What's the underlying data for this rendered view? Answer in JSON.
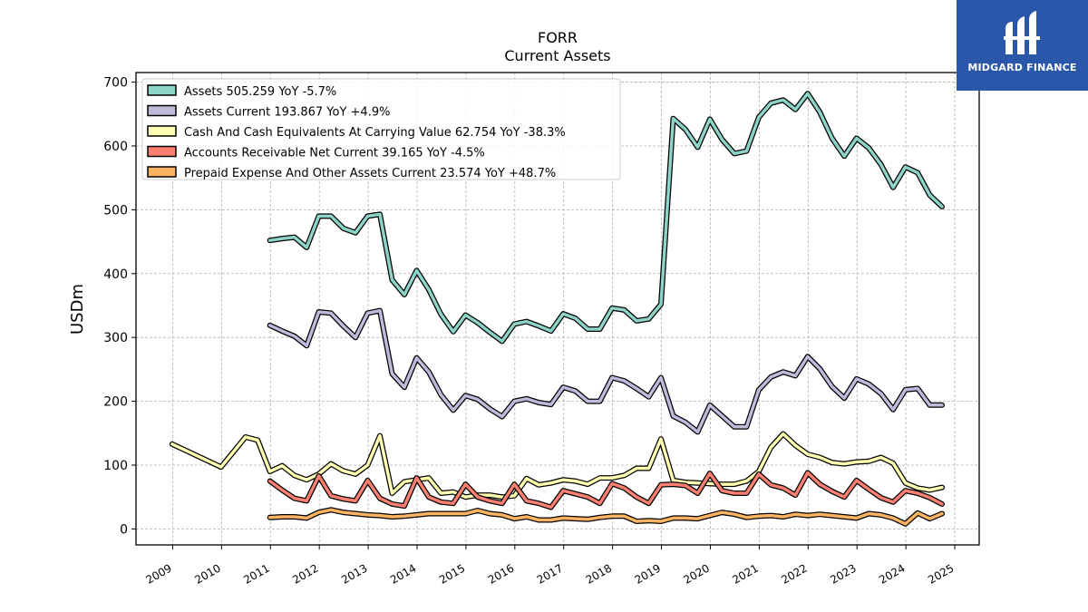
{
  "brand": {
    "name": "MIDGARD FINANCE",
    "bg_color": "#2a57a9"
  },
  "chart_data": {
    "type": "line",
    "title": "FORR",
    "subtitle": "Current  Assets",
    "xlabel": "",
    "ylabel": "USDm",
    "xlim": [
      2008.25,
      2025.5
    ],
    "ylim": [
      -25,
      715
    ],
    "yticks": [
      0,
      100,
      200,
      300,
      400,
      500,
      600,
      700
    ],
    "xticks": [
      "2009",
      "2010",
      "2011",
      "2012",
      "2013",
      "2014",
      "2015",
      "2016",
      "2017",
      "2018",
      "2019",
      "2020",
      "2021",
      "2022",
      "2023",
      "2024",
      "2025"
    ],
    "grid": true,
    "legend_position": "top-left",
    "series": [
      {
        "name": "Assets",
        "legend_label": "Assets  505.259 YoY -5.7%",
        "color": "#8dd3c7",
        "x": [
          2010.99,
          2011.24,
          2011.49,
          2011.74,
          2011.99,
          2012.24,
          2012.49,
          2012.74,
          2012.99,
          2013.24,
          2013.49,
          2013.74,
          2013.99,
          2014.24,
          2014.49,
          2014.74,
          2014.99,
          2015.24,
          2015.49,
          2015.74,
          2015.99,
          2016.24,
          2016.49,
          2016.74,
          2016.99,
          2017.24,
          2017.49,
          2017.74,
          2017.99,
          2018.24,
          2018.49,
          2018.74,
          2018.99,
          2019.24,
          2019.49,
          2019.74,
          2019.99,
          2020.24,
          2020.49,
          2020.74,
          2020.99,
          2021.24,
          2021.49,
          2021.74,
          2021.99,
          2022.24,
          2022.49,
          2022.74,
          2022.99,
          2023.24,
          2023.49,
          2023.74,
          2023.99,
          2024.24,
          2024.49,
          2024.74
        ],
        "values": [
          452,
          455,
          457,
          441,
          490,
          490,
          471,
          464,
          490,
          493,
          390,
          367,
          405,
          375,
          336,
          309,
          335,
          323,
          308,
          294,
          321,
          325,
          318,
          310,
          337,
          330,
          313,
          313,
          346,
          343,
          326,
          329,
          352,
          643,
          626,
          598,
          642,
          610,
          588,
          592,
          645,
          667,
          672,
          657,
          682,
          653,
          612,
          584,
          612,
          597,
          571,
          535,
          567,
          558,
          523,
          505
        ]
      },
      {
        "name": "Assets Current",
        "legend_label": "Assets Current  193.867 YoY +4.9%",
        "color": "#bebada",
        "x": [
          2010.99,
          2011.24,
          2011.49,
          2011.74,
          2011.99,
          2012.24,
          2012.49,
          2012.74,
          2012.99,
          2013.24,
          2013.49,
          2013.74,
          2013.99,
          2014.24,
          2014.49,
          2014.74,
          2014.99,
          2015.24,
          2015.49,
          2015.74,
          2015.99,
          2016.24,
          2016.49,
          2016.74,
          2016.99,
          2017.24,
          2017.49,
          2017.74,
          2017.99,
          2018.24,
          2018.49,
          2018.74,
          2018.99,
          2019.24,
          2019.49,
          2019.74,
          2019.99,
          2020.24,
          2020.49,
          2020.74,
          2020.99,
          2021.24,
          2021.49,
          2021.74,
          2021.99,
          2022.24,
          2022.49,
          2022.74,
          2022.99,
          2023.24,
          2023.49,
          2023.74,
          2023.99,
          2024.24,
          2024.49,
          2024.74
        ],
        "values": [
          319,
          310,
          302,
          287,
          340,
          338,
          318,
          300,
          338,
          342,
          243,
          222,
          268,
          246,
          210,
          186,
          209,
          203,
          188,
          176,
          200,
          204,
          198,
          195,
          222,
          216,
          200,
          200,
          237,
          232,
          220,
          207,
          237,
          177,
          167,
          152,
          194,
          177,
          160,
          160,
          218,
          238,
          246,
          240,
          270,
          251,
          223,
          205,
          235,
          227,
          212,
          187,
          218,
          220,
          194,
          194
        ]
      },
      {
        "name": "Cash And Cash Equivalents At Carrying Value",
        "legend_label": "Cash And Cash Equivalents At Carrying Value  62.754 YoY -38.3%",
        "color": "#ffffb3",
        "x": [
          2008.99,
          2009.99,
          2010.49,
          2010.74,
          2010.99,
          2011.24,
          2011.49,
          2011.74,
          2011.99,
          2012.24,
          2012.49,
          2012.74,
          2012.99,
          2013.24,
          2013.49,
          2013.74,
          2013.99,
          2014.24,
          2014.49,
          2014.74,
          2014.99,
          2015.24,
          2015.49,
          2015.74,
          2015.99,
          2016.24,
          2016.49,
          2016.74,
          2016.99,
          2017.24,
          2017.49,
          2017.74,
          2017.99,
          2018.24,
          2018.49,
          2018.74,
          2018.99,
          2019.24,
          2019.49,
          2019.74,
          2019.99,
          2020.24,
          2020.49,
          2020.74,
          2020.99,
          2021.24,
          2021.49,
          2021.74,
          2021.99,
          2022.24,
          2022.49,
          2022.74,
          2022.99,
          2023.24,
          2023.49,
          2023.74,
          2023.99,
          2024.24,
          2024.49,
          2024.74
        ],
        "values": [
          133,
          97,
          144,
          139,
          90,
          99,
          84,
          77,
          86,
          102,
          91,
          86,
          100,
          146,
          56,
          74,
          77,
          80,
          56,
          58,
          50,
          53,
          53,
          50,
          52,
          79,
          69,
          72,
          77,
          75,
          70,
          80,
          80,
          84,
          95,
          95,
          141,
          76,
          73,
          72,
          71,
          70,
          70,
          75,
          90,
          128,
          149,
          131,
          117,
          112,
          104,
          102,
          105,
          106,
          112,
          103,
          72,
          64,
          61,
          65
        ]
      },
      {
        "name": "Accounts Receivable Net Current",
        "legend_label": "Accounts Receivable Net Current  39.165 YoY -4.5%",
        "color": "#fb8072",
        "x": [
          2010.99,
          2011.24,
          2011.49,
          2011.74,
          2011.99,
          2012.24,
          2012.49,
          2012.74,
          2012.99,
          2013.24,
          2013.49,
          2013.74,
          2013.99,
          2014.24,
          2014.49,
          2014.74,
          2014.99,
          2015.24,
          2015.49,
          2015.74,
          2015.99,
          2016.24,
          2016.49,
          2016.74,
          2016.99,
          2017.24,
          2017.49,
          2017.74,
          2017.99,
          2018.24,
          2018.49,
          2018.74,
          2018.99,
          2019.24,
          2019.49,
          2019.74,
          2019.99,
          2020.24,
          2020.49,
          2020.74,
          2020.99,
          2021.24,
          2021.49,
          2021.74,
          2021.99,
          2022.24,
          2022.49,
          2022.74,
          2022.99,
          2023.24,
          2023.49,
          2023.74,
          2023.99,
          2024.24,
          2024.49,
          2024.74
        ],
        "values": [
          75,
          61,
          48,
          44,
          83,
          52,
          47,
          44,
          76,
          48,
          39,
          36,
          80,
          50,
          42,
          40,
          70,
          50,
          44,
          40,
          70,
          44,
          40,
          34,
          60,
          55,
          50,
          40,
          71,
          64,
          50,
          40,
          69,
          70,
          68,
          56,
          87,
          60,
          56,
          56,
          86,
          69,
          64,
          53,
          88,
          70,
          59,
          50,
          76,
          62,
          49,
          42,
          60,
          56,
          49,
          39
        ]
      },
      {
        "name": "Prepaid Expense And Other Assets Current",
        "legend_label": "Prepaid Expense And Other Assets Current  23.574 YoY +48.7%",
        "color": "#fdb462",
        "x": [
          2010.99,
          2011.24,
          2011.49,
          2011.74,
          2011.99,
          2012.24,
          2012.49,
          2012.74,
          2012.99,
          2013.24,
          2013.49,
          2013.74,
          2013.99,
          2014.24,
          2014.49,
          2014.74,
          2014.99,
          2015.24,
          2015.49,
          2015.74,
          2015.99,
          2016.24,
          2016.49,
          2016.74,
          2016.99,
          2017.24,
          2017.49,
          2017.74,
          2017.99,
          2018.24,
          2018.49,
          2018.74,
          2018.99,
          2019.24,
          2019.49,
          2019.74,
          2019.99,
          2020.24,
          2020.49,
          2020.74,
          2020.99,
          2021.24,
          2021.49,
          2021.74,
          2021.99,
          2022.24,
          2022.49,
          2022.74,
          2022.99,
          2023.24,
          2023.49,
          2023.74,
          2023.99,
          2024.24,
          2024.49,
          2024.74
        ],
        "values": [
          18,
          19,
          19,
          17,
          26,
          30,
          26,
          24,
          22,
          21,
          19,
          20,
          22,
          24,
          24,
          24,
          24,
          29,
          24,
          22,
          16,
          19,
          14,
          14,
          17,
          16,
          15,
          18,
          20,
          20,
          12,
          13,
          12,
          17,
          17,
          16,
          21,
          26,
          23,
          18,
          20,
          21,
          19,
          23,
          21,
          23,
          21,
          19,
          17,
          24,
          22,
          17,
          8,
          25,
          16,
          24
        ]
      }
    ]
  }
}
